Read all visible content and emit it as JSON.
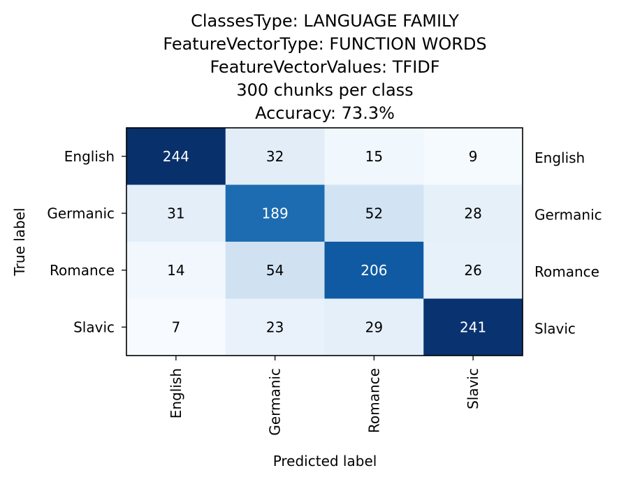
{
  "chart_data": {
    "type": "heatmap",
    "title_lines": [
      "ClassesType: LANGUAGE FAMILY",
      "FeatureVectorType: FUNCTION WORDS",
      "FeatureVectorValues: TFIDF",
      "300 chunks per class",
      "Accuracy: 73.3%"
    ],
    "xlabel": "Predicted label",
    "ylabel": "True label",
    "x_categories": [
      "English",
      "Germanic",
      "Romance",
      "Slavic"
    ],
    "y_categories": [
      "English",
      "Germanic",
      "Romance",
      "Slavic"
    ],
    "right_labels": [
      "English",
      "Germanic",
      "Romance",
      "Slavic"
    ],
    "values": [
      [
        244,
        32,
        15,
        9
      ],
      [
        31,
        189,
        52,
        28
      ],
      [
        14,
        54,
        206,
        26
      ],
      [
        7,
        23,
        29,
        241
      ]
    ],
    "colormap": "Blues",
    "color_range": [
      7,
      244
    ],
    "grid": false
  }
}
